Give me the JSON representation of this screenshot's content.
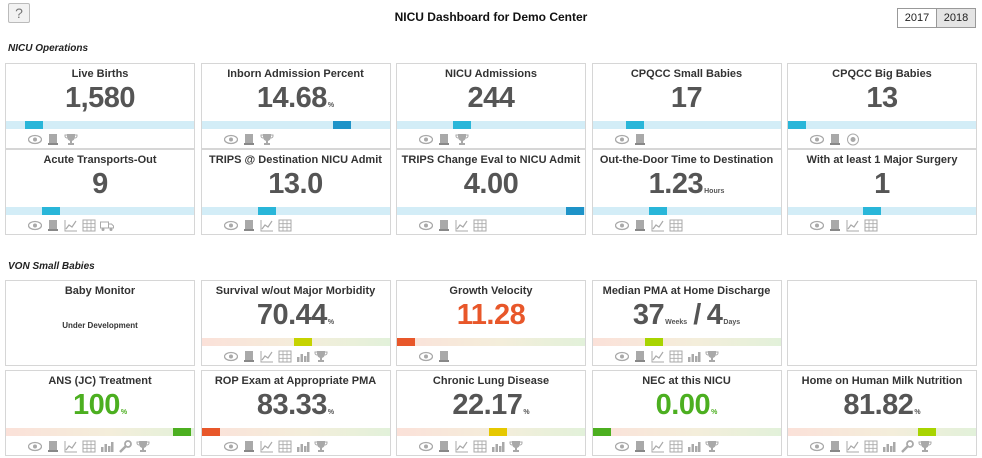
{
  "header": {
    "help": "?",
    "title": "NICU Dashboard for Demo Center",
    "years": [
      "2017",
      "2018"
    ]
  },
  "sections": [
    {
      "title": "NICU Operations",
      "tiles": [
        {
          "title": "Live Births",
          "value": "1,580"
        },
        {
          "title": "Inborn Admission Percent",
          "value": "14.68",
          "unit": "%"
        },
        {
          "title": "NICU Admissions",
          "value": "244"
        },
        {
          "title": "CPQCC Small Babies",
          "value": "17"
        },
        {
          "title": "CPQCC Big Babies",
          "value": "13"
        },
        {
          "title": "Acute Transports-Out",
          "value": "9"
        },
        {
          "title": "TRIPS @ Destination NICU Admit",
          "value": "13.0"
        },
        {
          "title": "TRIPS Change Eval to NICU Admit",
          "value": "4.00"
        },
        {
          "title": "Out-the-Door Time to Destination",
          "value": "1.23",
          "unit": "Hours"
        },
        {
          "title": "With at least 1 Major Surgery",
          "value": "1"
        }
      ]
    },
    {
      "title": "VON Small Babies",
      "tiles": [
        {
          "title": "Baby Monitor",
          "subtitle": "Under Development"
        },
        {
          "title": "Survival w/out Major Morbidity",
          "value": "70.44",
          "unit": "%"
        },
        {
          "title": "Growth Velocity",
          "value": "11.28",
          "color": "#e8572a"
        },
        {
          "title": "Median PMA at Home Discharge",
          "value": "37",
          "unit": "Weeks",
          "separator": "/",
          "value2": "4",
          "unit2": "Days"
        },
        {
          "title": "ANS (JC) Treatment",
          "value": "100",
          "unit": "%",
          "color": "#4caf20"
        },
        {
          "title": "ROP Exam at Appropriate PMA",
          "value": "83.33",
          "unit": "%"
        },
        {
          "title": "Chronic Lung Disease",
          "value": "22.17",
          "unit": "%"
        },
        {
          "title": "NEC at this NICU",
          "value": "0.00",
          "unit": "%",
          "color": "#4caf20"
        },
        {
          "title": "Home on Human Milk Nutrition",
          "value": "81.82",
          "unit": "%"
        }
      ]
    }
  ]
}
